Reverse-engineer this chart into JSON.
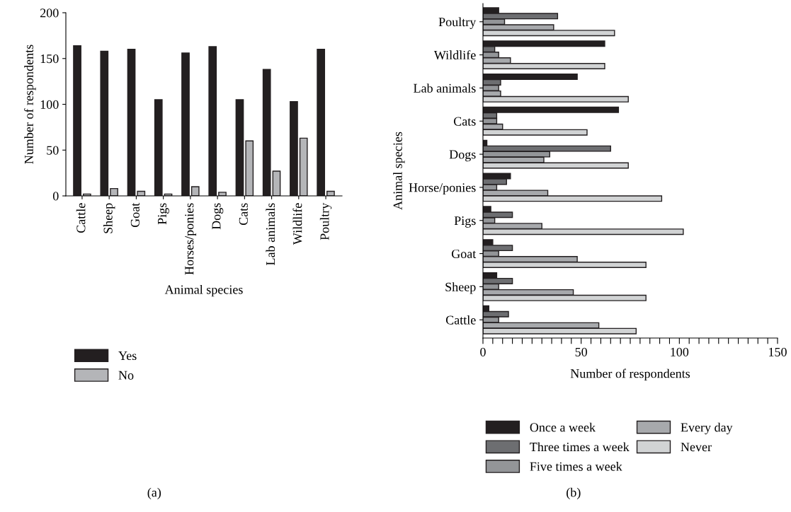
{
  "chart_data": [
    {
      "type": "bar",
      "categories": [
        "Cattle",
        "Sheep",
        "Goat",
        "Pigs",
        "Horses/ponies",
        "Dogs",
        "Cats",
        "Lab animals",
        "Wildlife",
        "Poultry"
      ],
      "xlabel": "Animal species",
      "ylabel": "Number of respondents",
      "ylim": [
        0,
        200
      ],
      "yticks": [
        0,
        50,
        100,
        150,
        200
      ],
      "legend": "bottom",
      "grid": false,
      "annotations": [
        "(a)"
      ],
      "series": [
        {
          "name": "Yes",
          "color": "#231f20",
          "values": [
            164,
            158,
            160,
            105,
            156,
            163,
            105,
            138,
            103,
            160
          ]
        },
        {
          "name": "No",
          "color": "#b4b5b8",
          "values": [
            2,
            8,
            5,
            2,
            10,
            4,
            60,
            27,
            63,
            5
          ]
        }
      ]
    },
    {
      "type": "bar",
      "orientation": "horizontal",
      "categories": [
        "Poultry",
        "Wildlife",
        "Lab animals",
        "Cats",
        "Dogs",
        "Horse/ponies",
        "Pigs",
        "Goat",
        "Sheep",
        "Cattle"
      ],
      "xlabel": "Number of respondents",
      "ylabel": "Animal species",
      "xlim": [
        0,
        150
      ],
      "xticks": [
        0,
        {
          "value": 5,
          "label": null
        },
        {
          "value": 10,
          "label": null
        },
        {
          "value": 15,
          "label": null
        },
        {
          "value": 20,
          "label": null
        },
        {
          "value": 25,
          "label": null
        },
        {
          "value": 30,
          "label": null
        },
        {
          "value": 35,
          "label": null
        },
        {
          "value": 40,
          "label": null
        },
        {
          "value": 45,
          "label": null
        },
        50,
        {
          "value": 55,
          "label": null
        },
        {
          "value": 60,
          "label": null
        },
        {
          "value": 65,
          "label": null
        },
        {
          "value": 70,
          "label": null
        },
        {
          "value": 75,
          "label": null
        },
        {
          "value": 80,
          "label": null
        },
        {
          "value": 85,
          "label": null
        },
        {
          "value": 90,
          "label": null
        },
        {
          "value": 95,
          "label": null
        },
        100,
        {
          "value": 105,
          "label": null
        },
        {
          "value": 110,
          "label": null
        },
        {
          "value": 115,
          "label": null
        },
        {
          "value": 120,
          "label": null
        },
        {
          "value": 125,
          "label": null
        },
        {
          "value": 130,
          "label": null
        },
        {
          "value": 135,
          "label": null
        },
        {
          "value": 140,
          "label": null
        },
        {
          "value": 145,
          "label": null
        },
        150
      ],
      "legend": "bottom",
      "grid": false,
      "annotations": [
        "(b)"
      ],
      "series": [
        {
          "name": "Once a week",
          "color": "#231f20",
          "values": [
            8,
            62,
            48,
            69,
            2,
            14,
            4,
            5,
            7,
            3
          ]
        },
        {
          "name": "Three times a week",
          "color": "#6d6e71",
          "values": [
            38,
            6,
            9,
            7,
            65,
            12,
            15,
            15,
            15,
            13
          ]
        },
        {
          "name": "Five times a week",
          "color": "#939598",
          "values": [
            11,
            8,
            8,
            7,
            34,
            7,
            6,
            8,
            8,
            8
          ]
        },
        {
          "name": "Every day",
          "color": "#a7a9ac",
          "values": [
            36,
            14,
            9,
            10,
            31,
            33,
            30,
            48,
            46,
            59
          ]
        },
        {
          "name": "Never",
          "color": "#d1d3d4",
          "values": [
            67,
            62,
            74,
            53,
            74,
            91,
            102,
            83,
            83,
            78
          ]
        }
      ]
    }
  ]
}
